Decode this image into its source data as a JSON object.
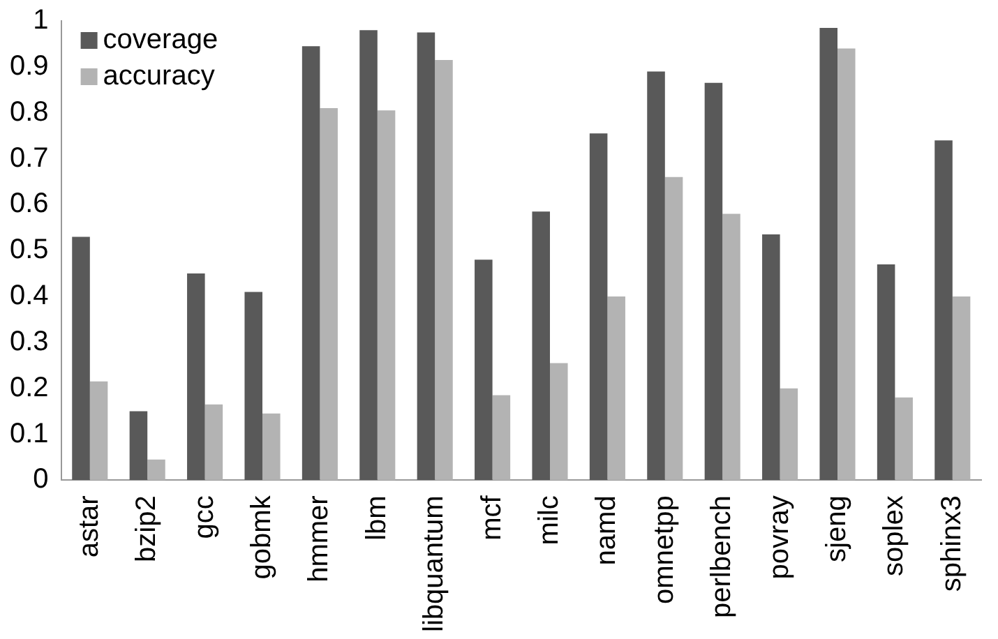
{
  "chart_data": {
    "type": "bar",
    "categories": [
      "astar",
      "bzip2",
      "gcc",
      "gobmk",
      "hmmer",
      "lbm",
      "libquantum",
      "mcf",
      "milc",
      "namd",
      "omnetpp",
      "perlbench",
      "povray",
      "sjeng",
      "soplex",
      "sphinx3"
    ],
    "series": [
      {
        "name": "coverage",
        "color": "#595959",
        "values": [
          0.53,
          0.15,
          0.45,
          0.41,
          0.945,
          0.98,
          0.975,
          0.48,
          0.585,
          0.755,
          0.89,
          0.865,
          0.535,
          0.985,
          0.47,
          0.74
        ]
      },
      {
        "name": "accuracy",
        "color": "#b3b3b3",
        "values": [
          0.215,
          0.045,
          0.165,
          0.145,
          0.81,
          0.805,
          0.915,
          0.185,
          0.255,
          0.4,
          0.66,
          0.58,
          0.2,
          0.94,
          0.18,
          0.4
        ]
      }
    ],
    "ylim": [
      0,
      1
    ],
    "yticks": [
      0,
      0.1,
      0.2,
      0.3,
      0.4,
      0.5,
      0.6,
      0.7,
      0.8,
      0.9,
      1
    ],
    "grid": false,
    "legend": "top left"
  }
}
